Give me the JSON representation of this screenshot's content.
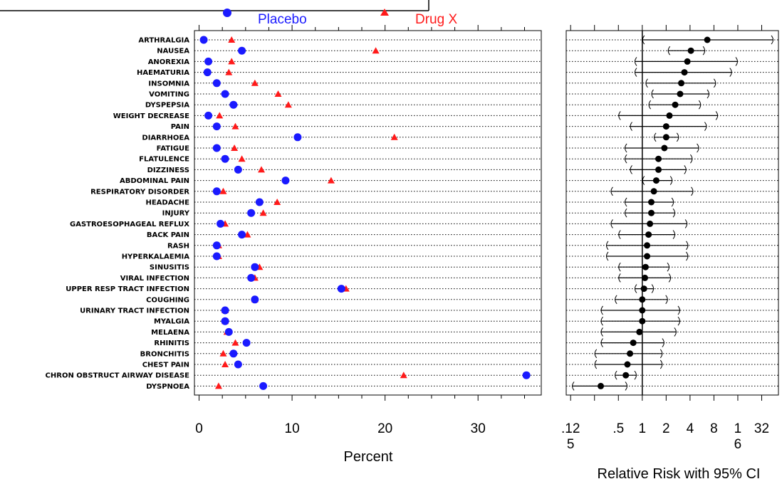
{
  "chart_data": {
    "type": "scatter",
    "legend": {
      "placement": "top",
      "placebo_label": "Placebo",
      "drug_label": "Drug X"
    },
    "colors": {
      "placebo": "#1a1aff",
      "drug": "#ff1a1a",
      "ci": "#000000"
    },
    "categories": [
      "ARTHRALGIA",
      "NAUSEA",
      "ANOREXIA",
      "HAEMATURIA",
      "INSOMNIA",
      "VOMITING",
      "DYSPEPSIA",
      "WEIGHT DECREASE",
      "PAIN",
      "DIARRHOEA",
      "FATIGUE",
      "FLATULENCE",
      "DIZZINESS",
      "ABDOMINAL PAIN",
      "RESPIRATORY DISORDER",
      "HEADACHE",
      "INJURY",
      "GASTROESOPHAGEAL REFLUX",
      "BACK PAIN",
      "RASH",
      "HYPERKALAEMIA",
      "SINUSITIS",
      "VIRAL INFECTION",
      "UPPER RESP TRACT INFECTION",
      "COUGHING",
      "URINARY TRACT INFECTION",
      "MYALGIA",
      "MELAENA",
      "RHINITIS",
      "BRONCHITIS",
      "CHEST PAIN",
      "CHRON OBSTRUCT AIRWAY DISEASE",
      "DYSPNOEA"
    ],
    "series": [
      {
        "name": "Placebo",
        "values": [
          0.5,
          4.6,
          1.0,
          0.9,
          1.9,
          2.8,
          3.7,
          1.0,
          1.9,
          10.6,
          1.9,
          2.8,
          4.2,
          9.3,
          1.9,
          6.5,
          5.6,
          2.3,
          4.6,
          1.9,
          1.9,
          6.0,
          5.6,
          15.3,
          6.0,
          2.8,
          2.8,
          3.2,
          5.1,
          3.7,
          4.2,
          35.2,
          6.9
        ]
      },
      {
        "name": "Drug X",
        "values": [
          3.5,
          19.0,
          3.5,
          3.2,
          6.0,
          8.5,
          9.6,
          2.2,
          3.9,
          21.0,
          3.8,
          4.6,
          6.7,
          14.2,
          2.6,
          8.4,
          6.9,
          2.8,
          5.2,
          2.1,
          2.1,
          6.5,
          6.0,
          15.8,
          6.0,
          2.8,
          2.8,
          3.0,
          3.9,
          2.6,
          2.8,
          22.0,
          2.1
        ]
      }
    ],
    "relative_risk": [
      {
        "rr": 6.6,
        "lo": 1.0,
        "hi": 45
      },
      {
        "rr": 4.1,
        "lo": 2.1,
        "hi": 6.2
      },
      {
        "rr": 3.7,
        "lo": 0.8,
        "hi": 16
      },
      {
        "rr": 3.4,
        "lo": 0.8,
        "hi": 13.5
      },
      {
        "rr": 3.1,
        "lo": 1.1,
        "hi": 8.5
      },
      {
        "rr": 3.0,
        "lo": 1.3,
        "hi": 7.0
      },
      {
        "rr": 2.6,
        "lo": 1.2,
        "hi": 5.5
      },
      {
        "rr": 2.2,
        "lo": 0.5,
        "hi": 9.0
      },
      {
        "rr": 2.0,
        "lo": 0.7,
        "hi": 6.5
      },
      {
        "rr": 2.0,
        "lo": 1.4,
        "hi": 2.9
      },
      {
        "rr": 1.9,
        "lo": 0.6,
        "hi": 5.2
      },
      {
        "rr": 1.6,
        "lo": 0.6,
        "hi": 4.3
      },
      {
        "rr": 1.6,
        "lo": 0.7,
        "hi": 3.6
      },
      {
        "rr": 1.5,
        "lo": 1.0,
        "hi": 2.4
      },
      {
        "rr": 1.4,
        "lo": 0.4,
        "hi": 4.4
      },
      {
        "rr": 1.3,
        "lo": 0.6,
        "hi": 2.5
      },
      {
        "rr": 1.3,
        "lo": 0.6,
        "hi": 2.6
      },
      {
        "rr": 1.25,
        "lo": 0.4,
        "hi": 3.7
      },
      {
        "rr": 1.2,
        "lo": 0.5,
        "hi": 2.6
      },
      {
        "rr": 1.15,
        "lo": 0.35,
        "hi": 3.8
      },
      {
        "rr": 1.15,
        "lo": 0.35,
        "hi": 3.8
      },
      {
        "rr": 1.1,
        "lo": 0.5,
        "hi": 2.2
      },
      {
        "rr": 1.08,
        "lo": 0.5,
        "hi": 2.3
      },
      {
        "rr": 1.05,
        "lo": 0.8,
        "hi": 1.4
      },
      {
        "rr": 1.0,
        "lo": 0.45,
        "hi": 2.1
      },
      {
        "rr": 1.0,
        "lo": 0.3,
        "hi": 3.0
      },
      {
        "rr": 1.0,
        "lo": 0.3,
        "hi": 3.0
      },
      {
        "rr": 0.92,
        "lo": 0.3,
        "hi": 2.7
      },
      {
        "rr": 0.77,
        "lo": 0.3,
        "hi": 1.9
      },
      {
        "rr": 0.7,
        "lo": 0.25,
        "hi": 1.8
      },
      {
        "rr": 0.65,
        "lo": 0.25,
        "hi": 1.8
      },
      {
        "rr": 0.62,
        "lo": 0.45,
        "hi": 0.85
      },
      {
        "rr": 0.3,
        "lo": 0.13,
        "hi": 0.65
      }
    ],
    "left_axis": {
      "xlabel": "Percent",
      "xlim": [
        -0.5,
        36.8
      ],
      "ticks": [
        0,
        10,
        20,
        30
      ],
      "tick_labels": [
        "0",
        "10",
        "20",
        "30"
      ],
      "grid": true
    },
    "right_axis": {
      "xlabel": "Relative Risk with 95% CI",
      "scale": "log2",
      "xlim": [
        0.11,
        52
      ],
      "tick_values": [
        0.125,
        0.5,
        1,
        2,
        4,
        8,
        16,
        32
      ],
      "tick_labels": [
        ".125",
        ".5",
        "1",
        "2",
        "4",
        "8",
        "16",
        "32"
      ],
      "reference_line": 1,
      "grid": true
    }
  }
}
